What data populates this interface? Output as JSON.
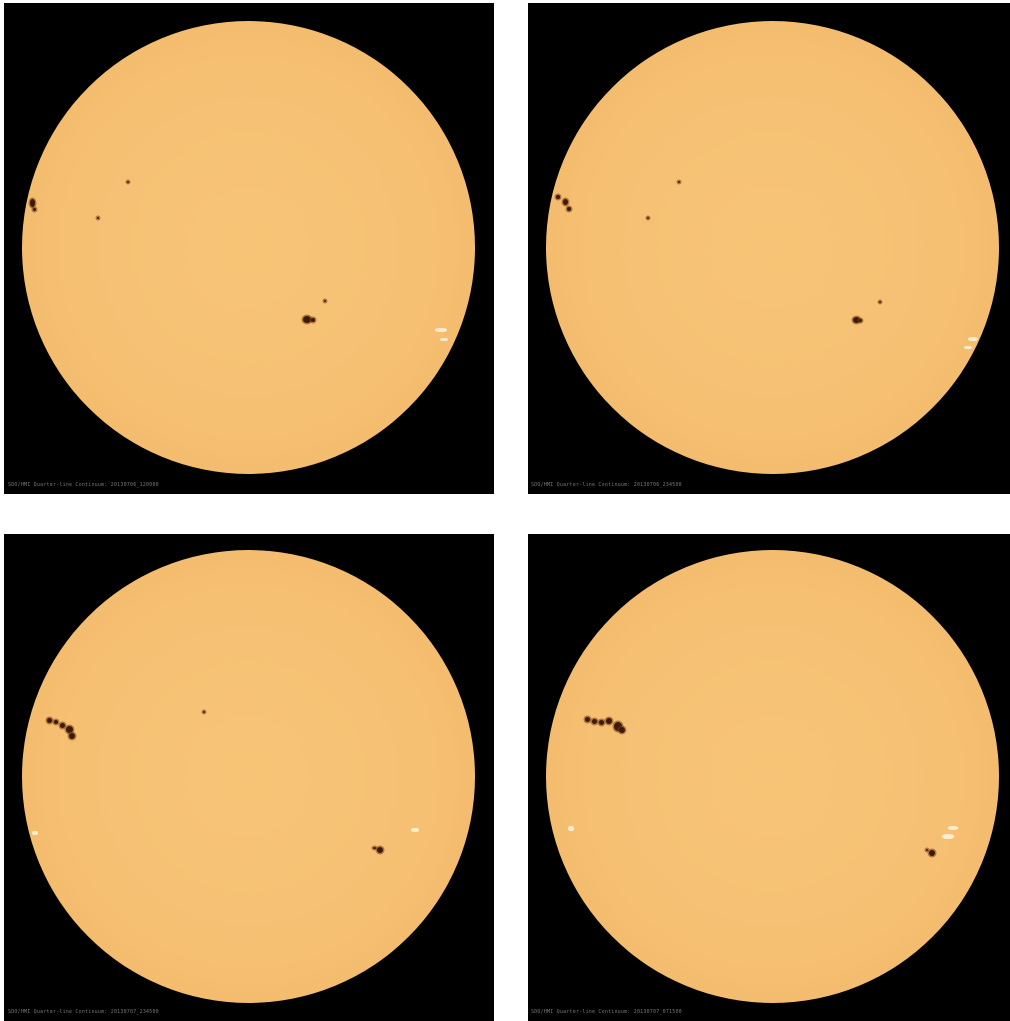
{
  "panels": [
    {
      "caption": "SDO/HMI Quarter-line Continuum: 20130706_120000"
    },
    {
      "caption": "SDO/HMI Quarter-line Continuum: 20130706_234500"
    },
    {
      "caption": "SDO/HMI Quarter-line Continuum: 20130707_234500"
    },
    {
      "caption": "SDO/HMI Quarter-line Continuum: 20130707_071500"
    }
  ],
  "colors": {
    "background": "#000000",
    "solar_disk": "#f6c073",
    "sunspot": "#3a1a08",
    "separator": "#ffffff"
  }
}
